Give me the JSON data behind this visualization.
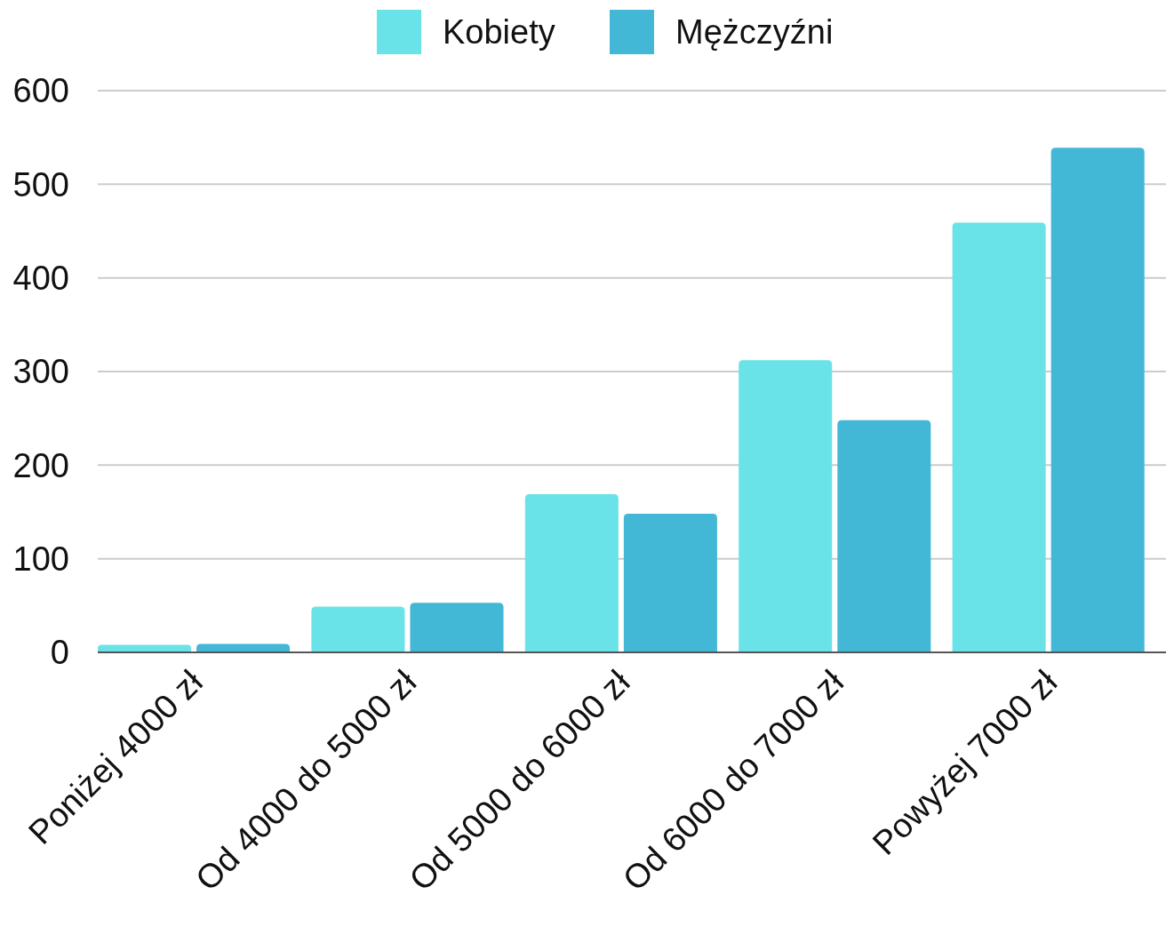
{
  "chart_data": {
    "type": "bar",
    "categories": [
      "Poniżej 4000 zł",
      "Od 4000 do 5000 zł",
      "Od 5000 do 6000 zł",
      "Od 6000 do 7000 zł",
      "Powyżej 7000 zł"
    ],
    "series": [
      {
        "name": "Kobiety",
        "color": "#6ae3e8",
        "values": [
          8,
          49,
          169,
          312,
          459
        ]
      },
      {
        "name": "Mężczyźni",
        "color": "#43b7d6",
        "values": [
          9,
          53,
          148,
          248,
          539
        ]
      }
    ],
    "ylim": [
      0,
      600
    ],
    "yticks": [
      0,
      100,
      200,
      300,
      400,
      500,
      600
    ],
    "grid": "y",
    "legend": "top"
  }
}
